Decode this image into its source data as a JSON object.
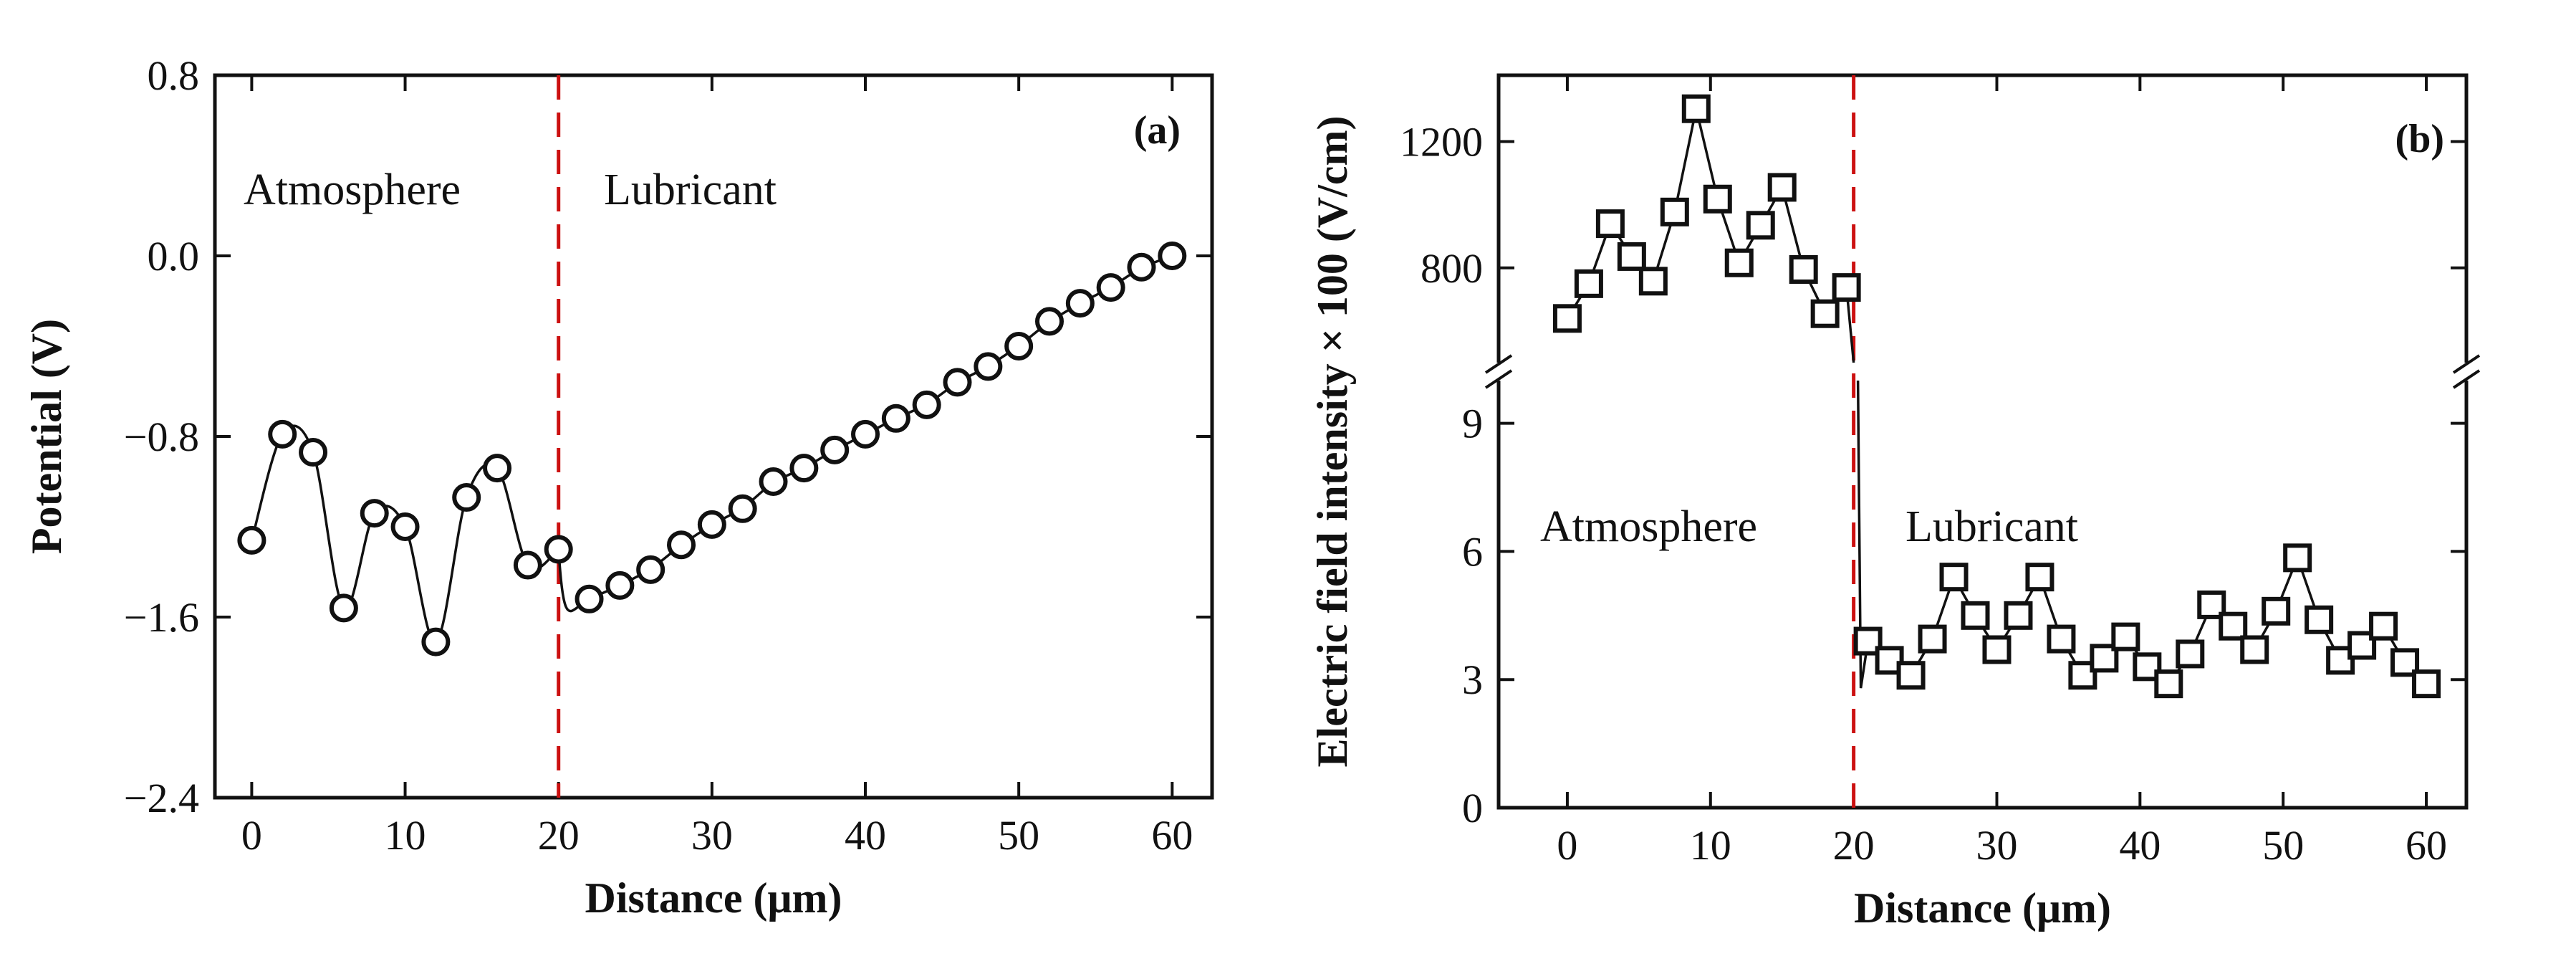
{
  "chart_data": [
    {
      "type": "line",
      "panel_label": "(a)",
      "xlabel": "Distance (μm)",
      "ylabel": "Potential (V)",
      "xlim": [
        -2.4,
        62.6
      ],
      "ylim": [
        -2.4,
        0.8
      ],
      "xticks": [
        0,
        10,
        20,
        30,
        40,
        50,
        60
      ],
      "yticks": [
        -2.4,
        -1.6,
        -0.8,
        0.0,
        0.8
      ],
      "ytick_labels": [
        "−2.4",
        "−1.6",
        "−0.8",
        "0.0",
        "0.8"
      ],
      "grid": false,
      "marker": "open-circle",
      "annotations": [
        "Atmosphere",
        "Lubricant"
      ],
      "interface_x": 20,
      "interface_color": "#cc1111",
      "x": [
        0,
        2,
        4,
        6,
        8,
        10,
        12,
        14,
        16,
        18,
        20,
        22,
        24,
        26,
        28,
        30,
        32,
        34,
        36,
        38,
        40,
        42,
        44,
        46,
        48,
        50,
        52,
        54,
        56,
        58,
        60
      ],
      "y": [
        -1.26,
        -0.79,
        -0.87,
        -1.56,
        -1.14,
        -1.2,
        -1.71,
        -1.07,
        -0.94,
        -1.37,
        -1.3,
        -1.52,
        -1.46,
        -1.39,
        -1.28,
        -1.19,
        -1.12,
        -1.0,
        -0.94,
        -0.86,
        -0.79,
        -0.72,
        -0.66,
        -0.56,
        -0.49,
        -0.4,
        -0.29,
        -0.21,
        -0.14,
        -0.05,
        0.0
      ]
    },
    {
      "type": "line",
      "panel_label": "(b)",
      "xlabel": "Distance (μm)",
      "ylabel": "Electric field intensity × 100 (V/cm)",
      "xlim": [
        -4.8,
        62.8
      ],
      "ylim_upper": [
        500,
        1410
      ],
      "ylim_lower": [
        0,
        10
      ],
      "broken_y_axis": true,
      "xticks": [
        0,
        10,
        20,
        30,
        40,
        50,
        60
      ],
      "yticks_upper": [
        800,
        1200
      ],
      "yticks_lower": [
        0,
        3,
        6,
        9
      ],
      "grid": false,
      "marker": "open-square",
      "annotations": [
        "Atmosphere",
        "Lubricant"
      ],
      "interface_x": 20,
      "interface_color": "#cc1111",
      "atmosphere": {
        "x": [
          0,
          1.5,
          3,
          4.5,
          6,
          7.5,
          9,
          10.5,
          12,
          13.5,
          15,
          16.5,
          18,
          19.5
        ],
        "y": [
          640,
          750,
          940,
          836,
          758,
          977,
          1304,
          1018,
          816,
          935,
          1055,
          795,
          655,
          738
        ]
      },
      "lubricant": {
        "x": [
          21,
          22.5,
          24,
          25.5,
          27,
          28.5,
          30,
          31.5,
          33,
          34.5,
          36,
          37.5,
          39,
          40.5,
          42,
          43.5,
          45,
          46.5,
          48,
          49.5,
          51,
          52.5,
          54,
          55.5,
          57,
          58.5,
          60
        ],
        "y": [
          3.9,
          3.45,
          3.1,
          3.95,
          5.4,
          4.5,
          3.7,
          4.5,
          5.4,
          3.95,
          3.1,
          3.5,
          4.0,
          3.3,
          2.9,
          3.6,
          4.75,
          4.25,
          3.7,
          4.6,
          5.85,
          4.4,
          3.45,
          3.8,
          4.25,
          3.4,
          2.9
        ]
      }
    }
  ]
}
